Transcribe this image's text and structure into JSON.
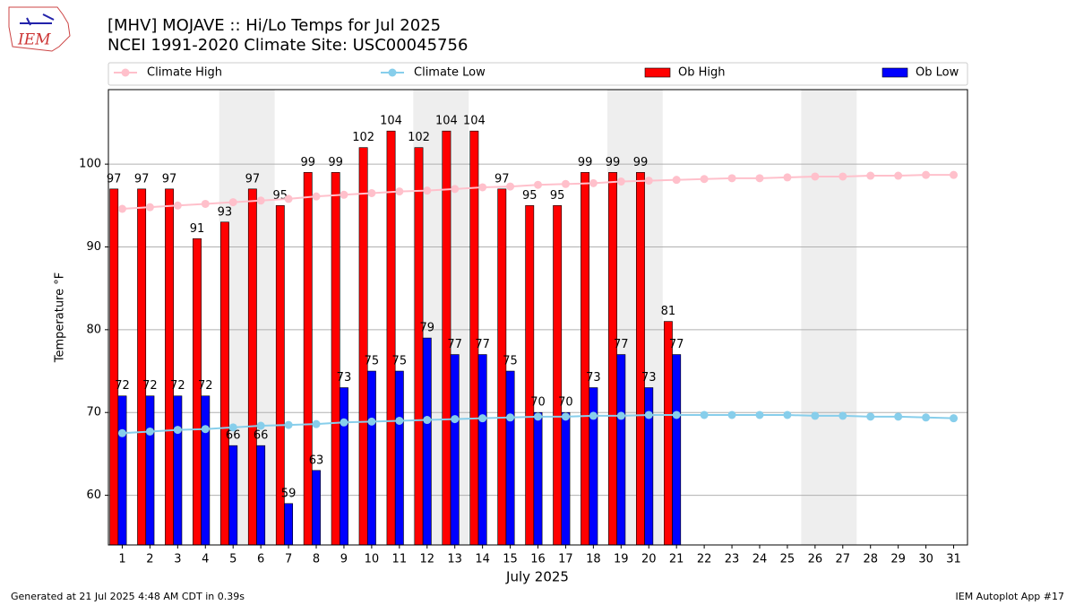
{
  "logo_text": "IEM",
  "footer_left": "Generated at 21 Jul 2025 4:48 AM CDT in 0.39s",
  "footer_right": "IEM Autoplot App #17",
  "chart_data": {
    "type": "bar",
    "title": "[MHV] MOJAVE :: Hi/Lo Temps for Jul 2025",
    "subtitle": "NCEI 1991-2020 Climate Site: USC00045756",
    "x_label": "July 2025",
    "y_label": "Temperature °F",
    "categories": [
      "1",
      "2",
      "3",
      "4",
      "5",
      "6",
      "7",
      "8",
      "9",
      "10",
      "11",
      "12",
      "13",
      "14",
      "15",
      "16",
      "17",
      "18",
      "19",
      "20",
      "21",
      "22",
      "23",
      "24",
      "25",
      "26",
      "27",
      "28",
      "29",
      "30",
      "31"
    ],
    "ylim": [
      54,
      109
    ],
    "yticks": [
      60,
      70,
      80,
      90,
      100
    ],
    "grid": true,
    "series": [
      {
        "name": "Climate High",
        "type": "line",
        "color": "#ffc0cb",
        "values": [
          94.6,
          94.8,
          95.0,
          95.2,
          95.4,
          95.6,
          95.8,
          96.1,
          96.3,
          96.5,
          96.7,
          96.8,
          97.0,
          97.2,
          97.3,
          97.5,
          97.6,
          97.7,
          97.9,
          98.0,
          98.1,
          98.2,
          98.3,
          98.3,
          98.4,
          98.5,
          98.5,
          98.6,
          98.6,
          98.7,
          98.7
        ]
      },
      {
        "name": "Climate Low",
        "type": "line",
        "color": "#87ceeb",
        "values": [
          67.5,
          67.7,
          67.9,
          68.0,
          68.2,
          68.4,
          68.5,
          68.6,
          68.8,
          68.9,
          69.0,
          69.1,
          69.2,
          69.3,
          69.4,
          69.5,
          69.5,
          69.6,
          69.6,
          69.7,
          69.7,
          69.7,
          69.7,
          69.7,
          69.7,
          69.6,
          69.6,
          69.5,
          69.5,
          69.4,
          69.3
        ]
      },
      {
        "name": "Ob High",
        "type": "bar",
        "color": "#ff0000",
        "values": [
          97,
          97,
          97,
          91,
          93,
          97,
          95,
          99,
          99,
          102,
          104,
          102,
          104,
          104,
          97,
          95,
          95,
          99,
          99,
          99,
          81,
          null,
          null,
          null,
          null,
          null,
          null,
          null,
          null,
          null,
          null
        ]
      },
      {
        "name": "Ob Low",
        "type": "bar",
        "color": "#0000ff",
        "values": [
          72,
          72,
          72,
          72,
          66,
          66,
          59,
          63,
          73,
          75,
          75,
          79,
          77,
          77,
          75,
          70,
          70,
          73,
          77,
          73,
          77,
          null,
          null,
          null,
          null,
          null,
          null,
          null,
          null,
          null,
          null
        ]
      }
    ]
  }
}
